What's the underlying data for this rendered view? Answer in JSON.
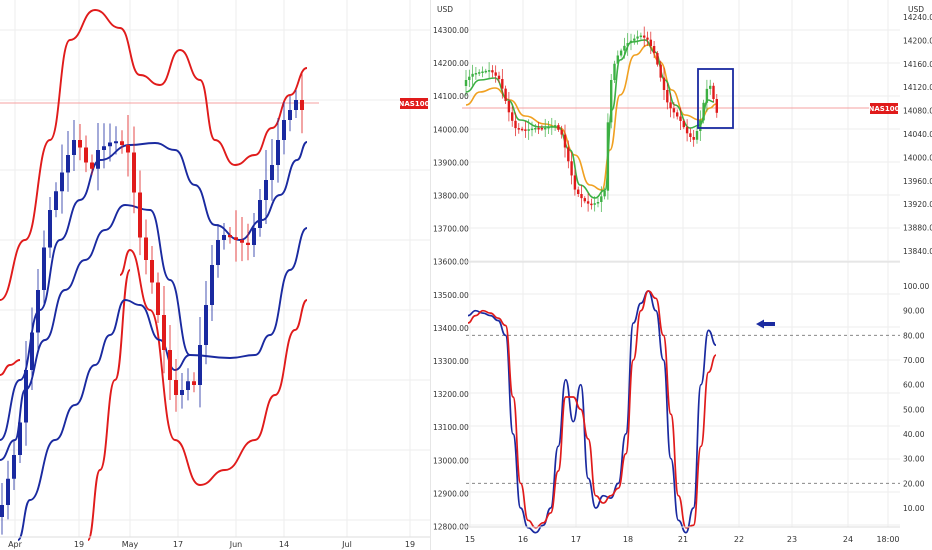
{
  "instrument": "NAS100",
  "currency_label": "USD",
  "colors": {
    "red": "#e01b1b",
    "blue": "#1a2aa0",
    "green": "#3cb043",
    "orange": "#f0a020",
    "grid": "#eeeeee",
    "priceline": "#f5a0a0"
  },
  "chart_data": [
    {
      "id": "daily",
      "type": "candlestick",
      "x_labels": [
        "Apr",
        "19",
        "May",
        "17",
        "Jun",
        "14",
        "Jul",
        "19"
      ],
      "price_label": "NAS100",
      "price_level": 14085,
      "series": [
        {
          "name": "",
          "kind": "candles"
        },
        {
          "name": "",
          "kind": "band",
          "color": "red"
        },
        {
          "name": "",
          "kind": "band",
          "color": "blue"
        }
      ]
    },
    {
      "id": "intraday",
      "type": "candlestick",
      "currency": "USD",
      "x_labels": [
        "15",
        "16",
        "17",
        "18",
        "21",
        "22",
        "23",
        "24",
        "18:00"
      ],
      "y_left_ticks": [
        14300.0,
        14200.0,
        14100.0,
        14000.0,
        13900.0,
        13800.0,
        13700.0,
        13600.0,
        13500.0,
        13400.0,
        13300.0,
        13200.0,
        13100.0,
        13000.0,
        12900.0,
        12800.0
      ],
      "y_right_ticks": [
        14240.0,
        14200.0,
        14160.0,
        14120.0,
        14080.0,
        14040.0,
        14000.0,
        13960.0,
        13920.0,
        13880.0,
        13840.0
      ],
      "price_label": "NAS100",
      "price_level": 14080,
      "highlight_box": true
    },
    {
      "id": "stochastic",
      "type": "line",
      "y_ticks": [
        100.0,
        90.0,
        80.0,
        70.0,
        60.0,
        50.0,
        40.0,
        30.0,
        20.0,
        10.0
      ],
      "levels": [
        80,
        20
      ],
      "ylim": [
        5,
        100
      ],
      "series": [
        {
          "name": "",
          "color": "blue",
          "values": [
            88,
            90,
            89,
            88,
            86,
            80,
            40,
            10,
            2,
            0,
            3,
            10,
            35,
            62,
            45,
            60,
            22,
            10,
            15,
            14,
            20,
            40,
            85,
            93,
            98,
            90,
            70,
            30,
            5,
            0,
            10,
            60,
            82,
            76
          ]
        },
        {
          "name": "",
          "color": "red",
          "values": [
            85,
            88,
            90,
            89,
            87,
            84,
            55,
            20,
            5,
            2,
            4,
            8,
            25,
            55,
            55,
            50,
            38,
            15,
            12,
            15,
            18,
            32,
            70,
            90,
            98,
            95,
            80,
            48,
            15,
            2,
            3,
            35,
            65,
            72
          ]
        }
      ],
      "arrow": true
    }
  ]
}
